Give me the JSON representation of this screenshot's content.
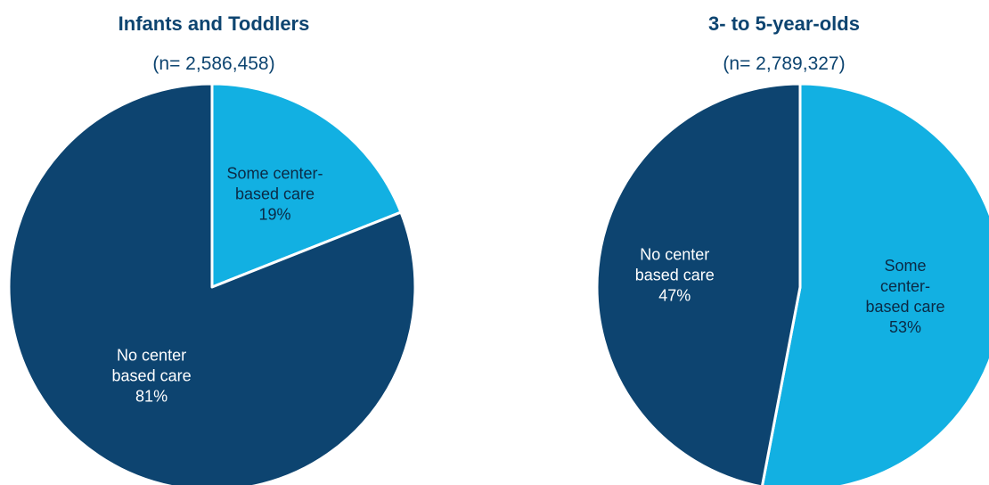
{
  "chart_data": [
    {
      "type": "pie",
      "title": "Infants and Toddlers",
      "subtitle": "(n= 2,586,458)",
      "slices": [
        {
          "label": "Some center-\nbased care",
          "value": 19,
          "value_label": "19%",
          "color": "#12b0e2",
          "label_color": "#0b2a45"
        },
        {
          "label": "No center\nbased care",
          "value": 81,
          "value_label": "81%",
          "color": "#0d4470",
          "label_color": "#ffffff"
        }
      ]
    },
    {
      "type": "pie",
      "title": "3- to 5-year-olds",
      "subtitle": "(n= 2,789,327)",
      "slices": [
        {
          "label": "Some\ncenter-\nbased care",
          "value": 53,
          "value_label": "53%",
          "color": "#12b0e2",
          "label_color": "#0b2a45"
        },
        {
          "label": "No center\nbased care",
          "value": 47,
          "value_label": "47%",
          "color": "#0d4470",
          "label_color": "#ffffff"
        }
      ]
    }
  ]
}
